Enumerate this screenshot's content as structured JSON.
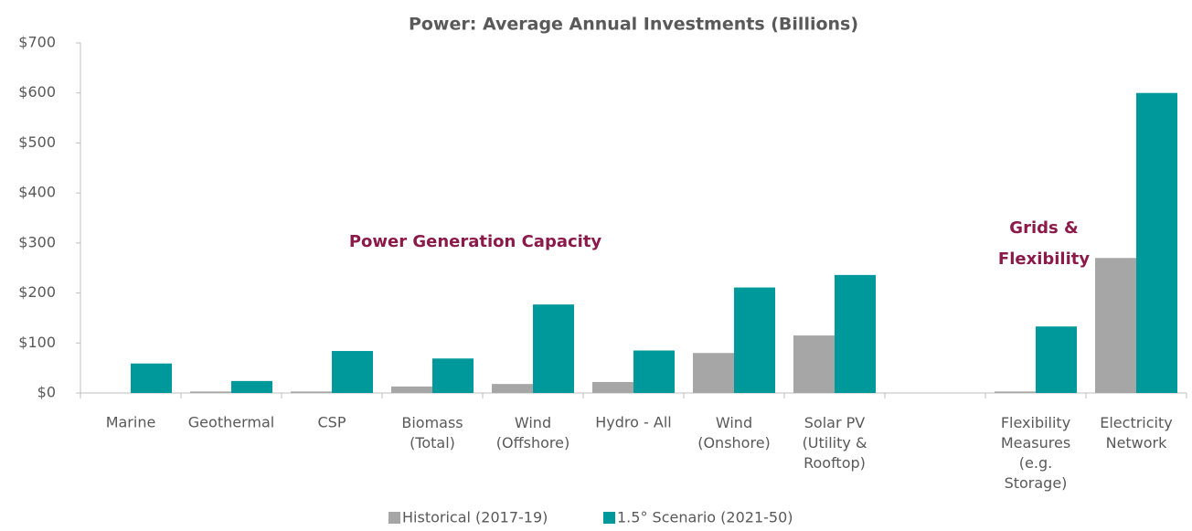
{
  "chart_data": {
    "type": "bar",
    "title": "Power: Average Annual Investments (Billions)",
    "categories": [
      "Marine",
      "Geothermal",
      "CSP",
      "Biomass\n(Total)",
      "Wind\n(Offshore)",
      "Hydro - All",
      "Wind\n(Onshore)",
      "Solar PV\n(Utility &\nRooftop)",
      null,
      "Flexibility\nMeasures\n(e.g.\nStorage)",
      "Electricity\nNetwork"
    ],
    "series": [
      {
        "name": "Historical (2017-19)",
        "color": "#a6a6a6",
        "values": [
          0,
          3,
          3,
          13,
          18,
          22,
          80,
          115,
          null,
          3,
          270
        ]
      },
      {
        "name": "1.5° Scenario (2021-50)",
        "color": "#00999b",
        "values": [
          59,
          24,
          84,
          69,
          177,
          85,
          211,
          236,
          null,
          133,
          600
        ]
      }
    ],
    "ylim": [
      0,
      700
    ],
    "yticks": [
      {
        "value": 0,
        "label": "$0"
      },
      {
        "value": 100,
        "label": "$100"
      },
      {
        "value": 200,
        "label": "$200"
      },
      {
        "value": 300,
        "label": "$300"
      },
      {
        "value": 400,
        "label": "$400"
      },
      {
        "value": 500,
        "label": "$500"
      },
      {
        "value": 600,
        "label": "$600"
      },
      {
        "value": 700,
        "label": "$700"
      }
    ],
    "annotations": [
      "Power Generation Capacity",
      "Grids &\nFlexibility"
    ],
    "legend": "bottom",
    "grid": false
  }
}
